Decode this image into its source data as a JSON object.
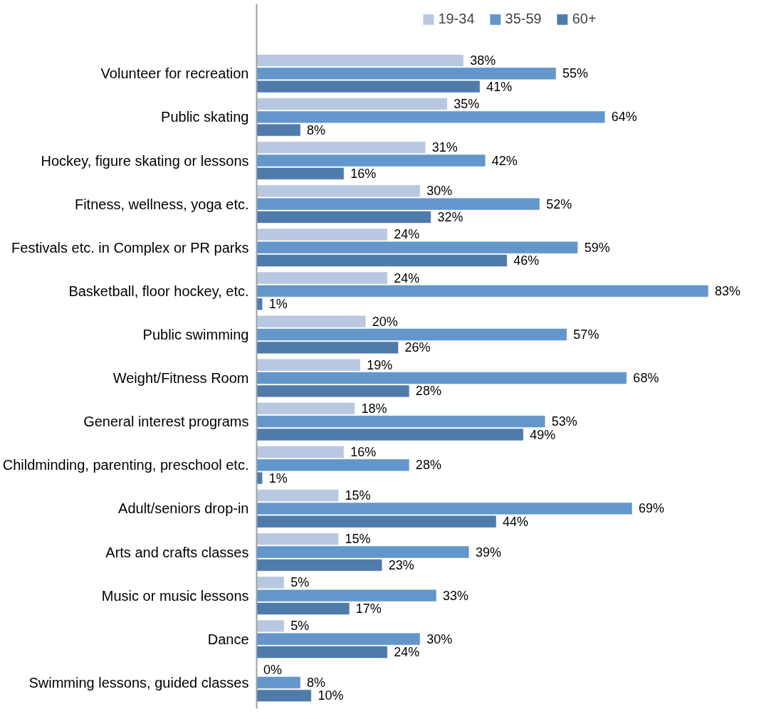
{
  "chart_data": {
    "type": "bar",
    "orientation": "horizontal",
    "legend": "top",
    "categories": [
      "Volunteer for recreation",
      "Public skating",
      "Hockey, figure skating or lessons",
      "Fitness, wellness, yoga etc.",
      "Festivals etc. in Complex or PR parks",
      "Basketball, floor hockey, etc.",
      "Public swimming",
      "Weight/Fitness Room",
      "General interest programs",
      "Childminding, parenting, preschool etc.",
      "Adult/seniors drop-in",
      "Arts and crafts classes",
      "Music or music lessons",
      "Dance",
      "Swimming lessons, guided classes"
    ],
    "series": [
      {
        "name": "19-34",
        "color": "#b9c8e1",
        "values": [
          38,
          35,
          31,
          30,
          24,
          24,
          20,
          19,
          18,
          16,
          15,
          15,
          5,
          5,
          0
        ],
        "value_labels": [
          "38%",
          "35%",
          "31%",
          "30%",
          "24%",
          "24%",
          "20%",
          "19%",
          "18%",
          "16%",
          "15%",
          "15%",
          "5%",
          "5%",
          "0%"
        ]
      },
      {
        "name": "35-59",
        "color": "#6397cb",
        "values": [
          55,
          64,
          42,
          52,
          59,
          83,
          57,
          68,
          53,
          28,
          69,
          39,
          33,
          30,
          8
        ],
        "value_labels": [
          "55%",
          "64%",
          "42%",
          "52%",
          "59%",
          "83%",
          "57%",
          "68%",
          "53%",
          "28%",
          "69%",
          "39%",
          "33%",
          "30%",
          "8%"
        ]
      },
      {
        "name": "60+",
        "color": "#4f7bab",
        "values": [
          41,
          8,
          16,
          32,
          46,
          1,
          26,
          28,
          49,
          1,
          44,
          23,
          17,
          24,
          10
        ],
        "value_labels": [
          "41%",
          "8%",
          "16%",
          "32%",
          "46%",
          "1%",
          "26%",
          "28%",
          "49%",
          "1%",
          "44%",
          "23%",
          "17%",
          "24%",
          "10%"
        ]
      }
    ]
  }
}
